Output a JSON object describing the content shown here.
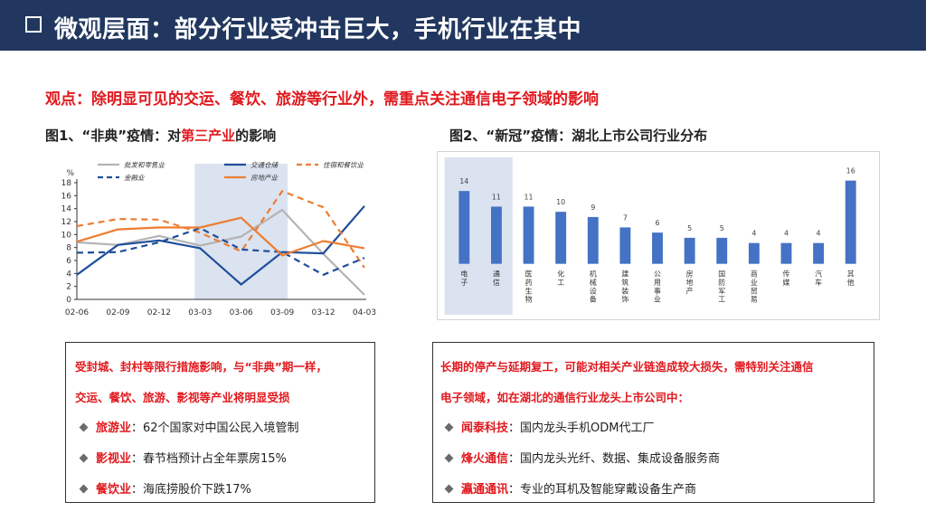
{
  "header": {
    "title": "微观层面：部分行业受冲击巨大，手机行业在其中"
  },
  "viewpoint": "观点：除明显可见的交运、餐饮、旅游等行业外，需重点关注通信电子领域的影响",
  "fig1": {
    "title_prefix": "图1、“非典”疫情：对",
    "title_highlight": "第三产业",
    "title_suffix": "的影响"
  },
  "fig2": {
    "title": "图2、“新冠”疫情：湖北上市公司行业分布"
  },
  "colors": {
    "header": "#21375f",
    "accent_red": "#e0191e",
    "bar_blue": "#4472c4",
    "highlight": "#dbe3f0"
  },
  "chart_data": [
    {
      "type": "line",
      "ylabel": "%",
      "ylim": [
        0,
        18
      ],
      "yticks": [
        "0",
        "2",
        "4",
        "6",
        "8",
        "10",
        "12",
        "14",
        "16",
        "18"
      ],
      "categories": [
        "02-06",
        "02-09",
        "02-12",
        "03-03",
        "03-06",
        "03-09",
        "03-12",
        "04-03"
      ],
      "highlight_range": [
        "03-03",
        "03-09"
      ],
      "series": [
        {
          "name": "批发和零售业",
          "color": "#b4b4b4",
          "style": "solid",
          "values": [
            8.8,
            8.4,
            9.8,
            8.3,
            9.7,
            13.8,
            7.0,
            0.7
          ]
        },
        {
          "name": "交通仓储",
          "color": "#1f4e9c",
          "style": "solid",
          "values": [
            3.8,
            8.4,
            9.1,
            7.9,
            2.3,
            7.3,
            7.1,
            14.4
          ]
        },
        {
          "name": "住宿和餐饮业",
          "color": "#ed7d31",
          "style": "dashed",
          "values": [
            11.3,
            12.4,
            12.3,
            10.3,
            7.4,
            16.7,
            14.2,
            4.9
          ]
        },
        {
          "name": "金融业",
          "color": "#1f4e9c",
          "style": "dashed",
          "values": [
            7.2,
            7.3,
            8.8,
            11.0,
            7.7,
            7.3,
            3.8,
            6.4
          ]
        },
        {
          "name": "房地产业",
          "color": "#ed7d31",
          "style": "solid",
          "values": [
            8.9,
            10.8,
            11.1,
            11.1,
            12.6,
            6.8,
            9.0,
            7.9
          ]
        }
      ]
    },
    {
      "type": "bar",
      "categories": [
        "电子",
        "通信",
        "医药生物",
        "化工",
        "机械设备",
        "建筑装饰",
        "公用事业",
        "房地产",
        "国防军工",
        "商业贸易",
        "传媒",
        "汽车",
        "其他"
      ],
      "values": [
        14,
        11,
        11,
        10,
        9,
        7,
        6,
        5,
        5,
        4,
        4,
        4,
        16
      ],
      "highlight_categories": [
        "电子",
        "通信"
      ],
      "ylim": [
        0,
        16
      ]
    }
  ],
  "left_box": {
    "lead_line1": "受封城、封村等限行措施影响，与“非典”期一样，",
    "lead_line2": "交运、餐饮、旅游、影视等产业将明显受损",
    "items": [
      {
        "key": "旅游业",
        "text": "：62个国家对中国公民入境管制"
      },
      {
        "key": "影视业",
        "text": "：春节档预计占全年票房15%"
      },
      {
        "key": "餐饮业",
        "text": "：海底捞股价下跌17%"
      }
    ]
  },
  "right_box": {
    "lead_line1": "长期的停产与延期复工，可能对相关产业链造成较大损失，需特别关注通信",
    "lead_line2": "电子领域，如在湖北的通信行业龙头上市公司中：",
    "items": [
      {
        "key": "闻泰科技",
        "text": "：国内龙头手机ODM代工厂"
      },
      {
        "key": "烽火通信",
        "text": "：国内龙头光纤、数据、集成设备服务商"
      },
      {
        "key": "瀛通通讯",
        "text": "：专业的耳机及智能穿戴设备生产商"
      }
    ]
  }
}
